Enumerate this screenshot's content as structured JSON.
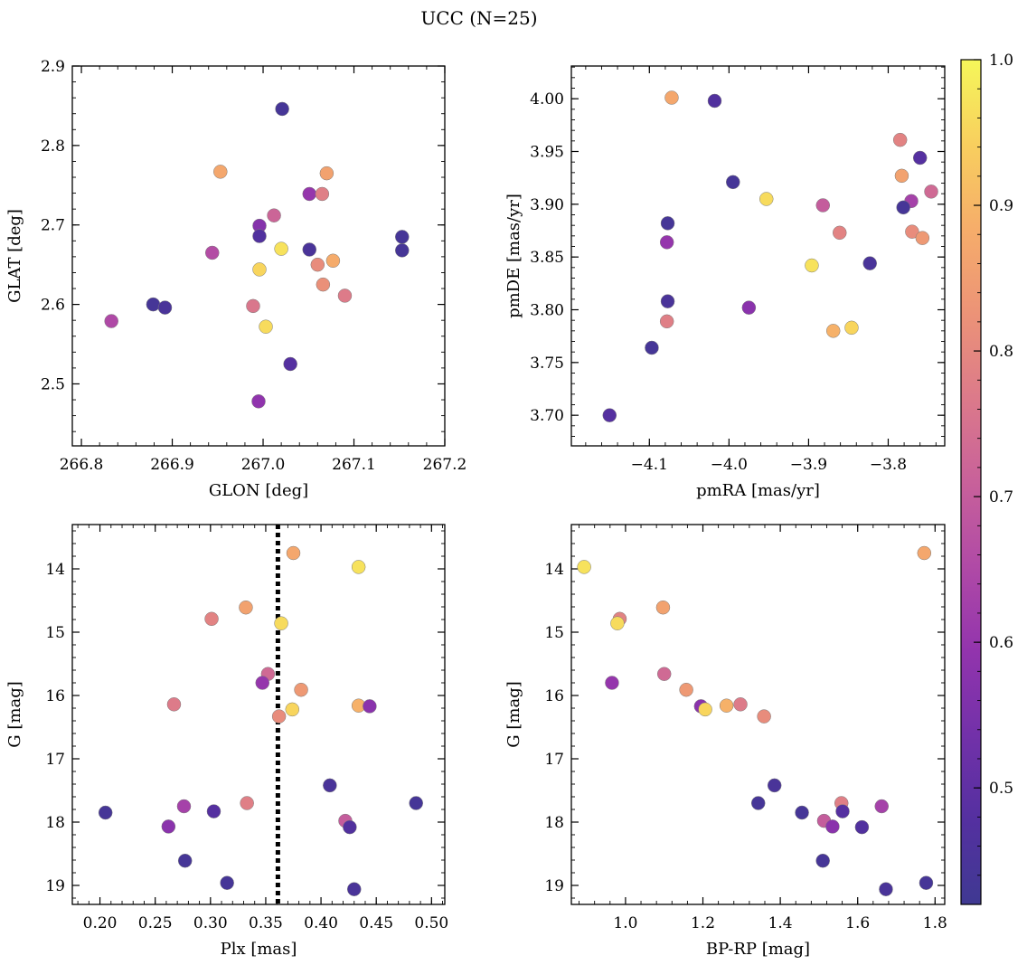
{
  "chart_data": {
    "title": "UCC (N=25)",
    "type": "scatter",
    "colorbar": {
      "colormap": "plasma",
      "range": [
        0.42,
        1.0
      ],
      "ticks": [
        0.5,
        0.6,
        0.7,
        0.8,
        0.9,
        1.0
      ],
      "tick_labels": [
        "0.5",
        "0.6",
        "0.7",
        "0.8",
        "0.9",
        "1.0"
      ]
    },
    "panels": [
      {
        "xlabel": "GLON [deg]",
        "ylabel": "GLAT [deg]",
        "xlim": [
          266.79,
          267.2
        ],
        "ylim": [
          2.422,
          2.9
        ],
        "xticks": [
          266.8,
          266.9,
          267.0,
          267.1,
          267.2
        ],
        "xtick_labels": [
          "266.8",
          "266.9",
          "267.0",
          "267.1",
          "267.2"
        ],
        "yticks": [
          2.5,
          2.6,
          2.7,
          2.8,
          2.9
        ],
        "ytick_labels": [
          "2.5",
          "2.6",
          "2.7",
          "2.8",
          "2.9"
        ],
        "points": [
          {
            "x": 267.021,
            "y": 2.846,
            "c": 0.44
          },
          {
            "x": 266.953,
            "y": 2.767,
            "c": 0.87
          },
          {
            "x": 267.07,
            "y": 2.765,
            "c": 0.86
          },
          {
            "x": 267.051,
            "y": 2.739,
            "c": 0.6
          },
          {
            "x": 267.065,
            "y": 2.739,
            "c": 0.78
          },
          {
            "x": 267.012,
            "y": 2.712,
            "c": 0.72
          },
          {
            "x": 266.996,
            "y": 2.699,
            "c": 0.57
          },
          {
            "x": 266.996,
            "y": 2.686,
            "c": 0.47
          },
          {
            "x": 267.153,
            "y": 2.685,
            "c": 0.44
          },
          {
            "x": 267.02,
            "y": 2.67,
            "c": 0.97
          },
          {
            "x": 267.051,
            "y": 2.669,
            "c": 0.45
          },
          {
            "x": 267.153,
            "y": 2.668,
            "c": 0.44
          },
          {
            "x": 266.944,
            "y": 2.665,
            "c": 0.66
          },
          {
            "x": 267.077,
            "y": 2.655,
            "c": 0.88
          },
          {
            "x": 267.06,
            "y": 2.65,
            "c": 0.81
          },
          {
            "x": 266.996,
            "y": 2.644,
            "c": 0.95
          },
          {
            "x": 267.066,
            "y": 2.625,
            "c": 0.82
          },
          {
            "x": 267.09,
            "y": 2.611,
            "c": 0.77
          },
          {
            "x": 266.879,
            "y": 2.6,
            "c": 0.44
          },
          {
            "x": 266.989,
            "y": 2.598,
            "c": 0.76
          },
          {
            "x": 266.892,
            "y": 2.596,
            "c": 0.45
          },
          {
            "x": 266.833,
            "y": 2.579,
            "c": 0.65
          },
          {
            "x": 267.003,
            "y": 2.572,
            "c": 0.96
          },
          {
            "x": 267.03,
            "y": 2.525,
            "c": 0.48
          },
          {
            "x": 266.995,
            "y": 2.478,
            "c": 0.59
          }
        ]
      },
      {
        "xlabel": "pmRA [mas/yr]",
        "ylabel": "pmDE [mas/yr]",
        "xlim": [
          -4.198,
          -3.729
        ],
        "ylim": [
          3.671,
          4.031
        ],
        "xticks": [
          -4.1,
          -4.0,
          -3.9,
          -3.8
        ],
        "xtick_labels": [
          "−4.1",
          "−4.0",
          "−3.9",
          "−3.8"
        ],
        "yticks": [
          3.7,
          3.75,
          3.8,
          3.85,
          3.9,
          3.95,
          4.0
        ],
        "ytick_labels": [
          "3.70",
          "3.75",
          "3.80",
          "3.85",
          "3.90",
          "3.95",
          "4.00"
        ],
        "points": [
          {
            "x": -4.072,
            "y": 4.001,
            "c": 0.87
          },
          {
            "x": -4.018,
            "y": 3.998,
            "c": 0.47
          },
          {
            "x": -3.785,
            "y": 3.961,
            "c": 0.79
          },
          {
            "x": -3.76,
            "y": 3.944,
            "c": 0.48
          },
          {
            "x": -3.783,
            "y": 3.927,
            "c": 0.86
          },
          {
            "x": -3.995,
            "y": 3.921,
            "c": 0.44
          },
          {
            "x": -3.746,
            "y": 3.912,
            "c": 0.73
          },
          {
            "x": -3.953,
            "y": 3.905,
            "c": 0.96
          },
          {
            "x": -3.771,
            "y": 3.903,
            "c": 0.63
          },
          {
            "x": -3.882,
            "y": 3.899,
            "c": 0.7
          },
          {
            "x": -3.781,
            "y": 3.897,
            "c": 0.44
          },
          {
            "x": -4.077,
            "y": 3.882,
            "c": 0.44
          },
          {
            "x": -3.77,
            "y": 3.874,
            "c": 0.81
          },
          {
            "x": -3.861,
            "y": 3.873,
            "c": 0.79
          },
          {
            "x": -3.757,
            "y": 3.868,
            "c": 0.84
          },
          {
            "x": -4.078,
            "y": 3.864,
            "c": 0.6
          },
          {
            "x": -3.823,
            "y": 3.844,
            "c": 0.45
          },
          {
            "x": -3.896,
            "y": 3.842,
            "c": 0.97
          },
          {
            "x": -4.077,
            "y": 3.808,
            "c": 0.45
          },
          {
            "x": -3.975,
            "y": 3.802,
            "c": 0.58
          },
          {
            "x": -4.078,
            "y": 3.789,
            "c": 0.78
          },
          {
            "x": -3.846,
            "y": 3.783,
            "c": 0.95
          },
          {
            "x": -3.869,
            "y": 3.78,
            "c": 0.89
          },
          {
            "x": -4.097,
            "y": 3.764,
            "c": 0.44
          },
          {
            "x": -4.15,
            "y": 3.7,
            "c": 0.48
          }
        ]
      },
      {
        "xlabel": "Plx [mas]",
        "ylabel": "G [mag]",
        "xlim": [
          0.175,
          0.512
        ],
        "ylim": [
          19.3,
          13.3
        ],
        "xticks": [
          0.2,
          0.25,
          0.3,
          0.35,
          0.4,
          0.45,
          0.5
        ],
        "xtick_labels": [
          "0.20",
          "0.25",
          "0.30",
          "0.35",
          "0.40",
          "0.45",
          "0.50"
        ],
        "yticks": [
          14,
          15,
          16,
          17,
          18,
          19
        ],
        "ytick_labels": [
          "14",
          "15",
          "16",
          "17",
          "18",
          "19"
        ],
        "vline": 0.361,
        "points": [
          {
            "x": 0.375,
            "y": 13.75,
            "c": 0.87
          },
          {
            "x": 0.434,
            "y": 13.97,
            "c": 0.97
          },
          {
            "x": 0.332,
            "y": 14.61,
            "c": 0.86
          },
          {
            "x": 0.301,
            "y": 14.79,
            "c": 0.79
          },
          {
            "x": 0.364,
            "y": 14.86,
            "c": 0.96
          },
          {
            "x": 0.352,
            "y": 15.66,
            "c": 0.73
          },
          {
            "x": 0.347,
            "y": 15.8,
            "c": 0.6
          },
          {
            "x": 0.382,
            "y": 15.91,
            "c": 0.84
          },
          {
            "x": 0.267,
            "y": 16.14,
            "c": 0.77
          },
          {
            "x": 0.434,
            "y": 16.16,
            "c": 0.89
          },
          {
            "x": 0.444,
            "y": 16.17,
            "c": 0.58
          },
          {
            "x": 0.374,
            "y": 16.22,
            "c": 0.95
          },
          {
            "x": 0.362,
            "y": 16.33,
            "c": 0.81
          },
          {
            "x": 0.408,
            "y": 17.42,
            "c": 0.45
          },
          {
            "x": 0.486,
            "y": 17.7,
            "c": 0.44
          },
          {
            "x": 0.333,
            "y": 17.7,
            "c": 0.78
          },
          {
            "x": 0.276,
            "y": 17.75,
            "c": 0.63
          },
          {
            "x": 0.303,
            "y": 17.83,
            "c": 0.48
          },
          {
            "x": 0.205,
            "y": 17.85,
            "c": 0.44
          },
          {
            "x": 0.422,
            "y": 17.98,
            "c": 0.7
          },
          {
            "x": 0.262,
            "y": 18.07,
            "c": 0.58
          },
          {
            "x": 0.426,
            "y": 18.08,
            "c": 0.47
          },
          {
            "x": 0.277,
            "y": 18.61,
            "c": 0.44
          },
          {
            "x": 0.315,
            "y": 18.96,
            "c": 0.44
          },
          {
            "x": 0.43,
            "y": 19.06,
            "c": 0.45
          }
        ]
      },
      {
        "xlabel": "BP-RP [mag]",
        "ylabel": "G [mag]",
        "xlim": [
          0.86,
          1.825
        ],
        "ylim": [
          19.3,
          13.3
        ],
        "xticks": [
          1.0,
          1.2,
          1.4,
          1.6,
          1.8
        ],
        "xtick_labels": [
          "1.0",
          "1.2",
          "1.4",
          "1.6",
          "1.8"
        ],
        "yticks": [
          14,
          15,
          16,
          17,
          18,
          19
        ],
        "ytick_labels": [
          "14",
          "15",
          "16",
          "17",
          "18",
          "19"
        ],
        "points": [
          {
            "x": 1.772,
            "y": 13.75,
            "c": 0.87
          },
          {
            "x": 0.893,
            "y": 13.97,
            "c": 0.97
          },
          {
            "x": 1.097,
            "y": 14.61,
            "c": 0.86
          },
          {
            "x": 0.985,
            "y": 14.79,
            "c": 0.79
          },
          {
            "x": 0.979,
            "y": 14.86,
            "c": 0.96
          },
          {
            "x": 1.1,
            "y": 15.66,
            "c": 0.73
          },
          {
            "x": 0.965,
            "y": 15.8,
            "c": 0.6
          },
          {
            "x": 1.157,
            "y": 15.91,
            "c": 0.84
          },
          {
            "x": 1.297,
            "y": 16.14,
            "c": 0.77
          },
          {
            "x": 1.261,
            "y": 16.16,
            "c": 0.89
          },
          {
            "x": 1.195,
            "y": 16.17,
            "c": 0.58
          },
          {
            "x": 1.206,
            "y": 16.22,
            "c": 0.95
          },
          {
            "x": 1.358,
            "y": 16.33,
            "c": 0.81
          },
          {
            "x": 1.385,
            "y": 17.42,
            "c": 0.45
          },
          {
            "x": 1.343,
            "y": 17.7,
            "c": 0.44
          },
          {
            "x": 1.558,
            "y": 17.7,
            "c": 0.78
          },
          {
            "x": 1.662,
            "y": 17.75,
            "c": 0.63
          },
          {
            "x": 1.561,
            "y": 17.83,
            "c": 0.48
          },
          {
            "x": 1.456,
            "y": 17.85,
            "c": 0.44
          },
          {
            "x": 1.513,
            "y": 17.98,
            "c": 0.7
          },
          {
            "x": 1.535,
            "y": 18.07,
            "c": 0.58
          },
          {
            "x": 1.611,
            "y": 18.08,
            "c": 0.47
          },
          {
            "x": 1.51,
            "y": 18.61,
            "c": 0.44
          },
          {
            "x": 1.777,
            "y": 18.96,
            "c": 0.44
          },
          {
            "x": 1.673,
            "y": 19.06,
            "c": 0.45
          }
        ]
      }
    ]
  }
}
